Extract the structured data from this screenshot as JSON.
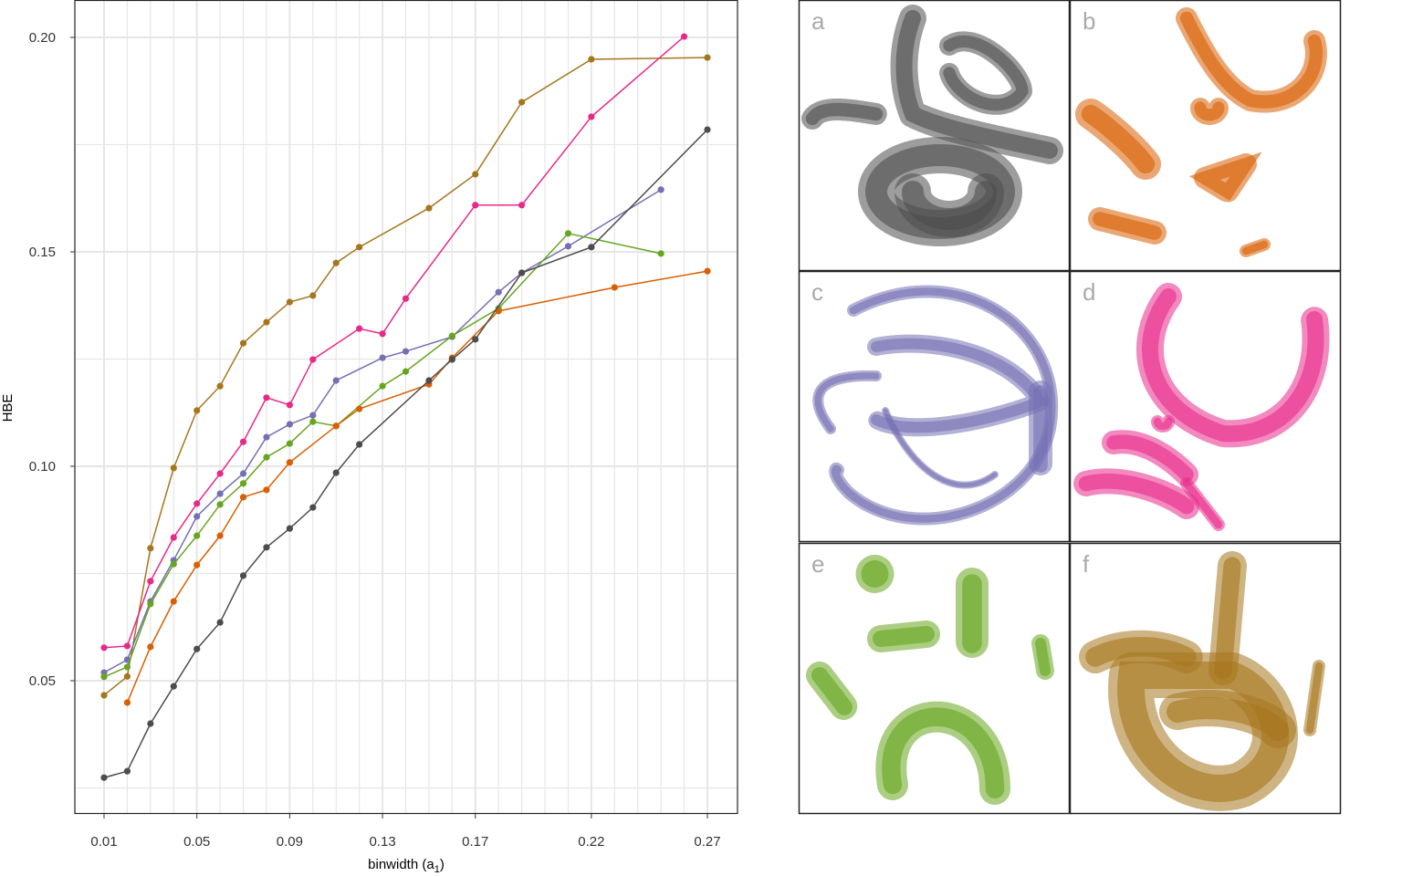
{
  "chart_data": [
    {
      "type": "line",
      "xlabel": "binwidth (a",
      "xlabel_sub": "1",
      "xlabel_close": ")",
      "ylabel": "HBE",
      "xlim": [
        0.0,
        0.283
      ],
      "ylim": [
        0.018,
        0.209
      ],
      "x_ticks": [
        "0.01",
        "0.05",
        "0.09",
        "0.13",
        "0.17",
        "0.22",
        "0.27"
      ],
      "y_ticks": [
        "0.05",
        "0.10",
        "0.15",
        "0.20"
      ],
      "grid": true,
      "series": [
        {
          "color": "#a6761d",
          "x": [
            0.01,
            0.02,
            0.03,
            0.04,
            0.05,
            0.06,
            0.07,
            0.08,
            0.09,
            0.1,
            0.11,
            0.12,
            0.15,
            0.17,
            0.19,
            0.22,
            0.27
          ],
          "y": [
            0.0466,
            0.051,
            0.0809,
            0.0996,
            0.113,
            0.1187,
            0.1287,
            0.1336,
            0.1383,
            0.1398,
            0.1474,
            0.1511,
            0.1602,
            0.1681,
            0.1849,
            0.1949,
            0.1953
          ]
        },
        {
          "color": "#e7298a",
          "x": [
            0.01,
            0.02,
            0.03,
            0.04,
            0.05,
            0.06,
            0.07,
            0.08,
            0.09,
            0.1,
            0.12,
            0.13,
            0.14,
            0.17,
            0.19,
            0.22,
            0.26
          ],
          "y": [
            0.0577,
            0.0581,
            0.0732,
            0.0834,
            0.0913,
            0.0983,
            0.1057,
            0.116,
            0.1143,
            0.1249,
            0.1321,
            0.1309,
            0.1391,
            0.1609,
            0.1609,
            0.1815,
            0.2002
          ]
        },
        {
          "color": "#7570b3",
          "x": [
            0.01,
            0.02,
            0.03,
            0.04,
            0.05,
            0.06,
            0.07,
            0.08,
            0.09,
            0.1,
            0.11,
            0.13,
            0.14,
            0.16,
            0.18,
            0.19,
            0.21,
            0.25
          ],
          "y": [
            0.0519,
            0.0549,
            0.0685,
            0.0781,
            0.0883,
            0.0936,
            0.0983,
            0.1068,
            0.1098,
            0.1119,
            0.12,
            0.1253,
            0.1268,
            0.1302,
            0.1406,
            0.1451,
            0.1513,
            0.1645
          ]
        },
        {
          "color": "#66a61e",
          "x": [
            0.01,
            0.02,
            0.03,
            0.04,
            0.05,
            0.06,
            0.07,
            0.08,
            0.09,
            0.1,
            0.11,
            0.13,
            0.14,
            0.16,
            0.18,
            0.21,
            0.25
          ],
          "y": [
            0.0509,
            0.0532,
            0.0679,
            0.0772,
            0.0838,
            0.0911,
            0.096,
            0.1021,
            0.1053,
            0.1104,
            0.1094,
            0.1187,
            0.1221,
            0.1304,
            0.1368,
            0.1543,
            0.1496
          ]
        },
        {
          "color": "#d95f02",
          "x": [
            0.02,
            0.03,
            0.04,
            0.05,
            0.06,
            0.07,
            0.08,
            0.09,
            0.11,
            0.12,
            0.15,
            0.16,
            0.18,
            0.23,
            0.27
          ],
          "y": [
            0.0449,
            0.0579,
            0.0685,
            0.077,
            0.0838,
            0.0928,
            0.0945,
            0.1009,
            0.1094,
            0.1134,
            0.1191,
            0.1253,
            0.1362,
            0.1417,
            0.1455
          ]
        },
        {
          "color": "#4d4d4d",
          "x": [
            0.01,
            0.02,
            0.03,
            0.04,
            0.05,
            0.06,
            0.07,
            0.08,
            0.09,
            0.1,
            0.11,
            0.12,
            0.15,
            0.16,
            0.17,
            0.19,
            0.22,
            0.27
          ],
          "y": [
            0.0274,
            0.0289,
            0.04,
            0.0487,
            0.0574,
            0.0636,
            0.0745,
            0.0811,
            0.0855,
            0.0904,
            0.0985,
            0.1051,
            0.12,
            0.1249,
            0.1296,
            0.1451,
            0.1511,
            0.1785
          ]
        }
      ]
    },
    {
      "type": "scatter",
      "panels": [
        {
          "label": "a",
          "color": "#4d4d4d"
        },
        {
          "label": "b",
          "color": "#d95f02"
        },
        {
          "label": "c",
          "color": "#7570b3"
        },
        {
          "label": "d",
          "color": "#e7298a"
        },
        {
          "label": "e",
          "color": "#66a61e"
        },
        {
          "label": "f",
          "color": "#a6761d"
        }
      ]
    }
  ]
}
